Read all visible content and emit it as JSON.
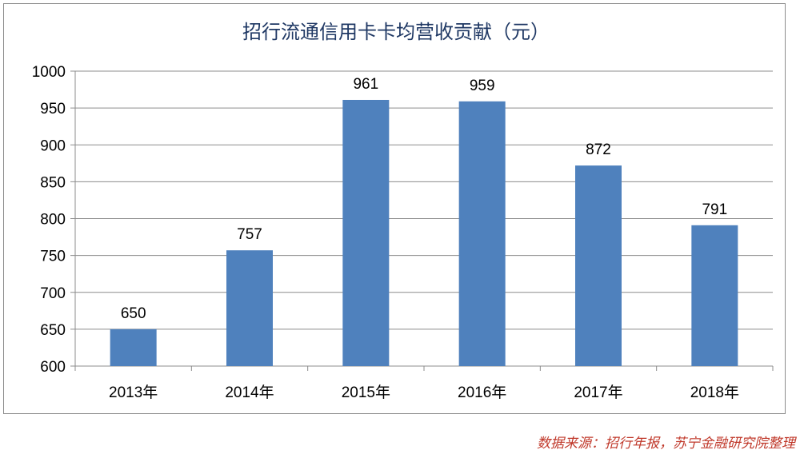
{
  "chart_data": {
    "type": "bar",
    "title": "招行流通信用卡卡均营收贡献（元）",
    "categories": [
      "2013年",
      "2014年",
      "2015年",
      "2016年",
      "2017年",
      "2018年"
    ],
    "values": [
      650,
      757,
      961,
      959,
      872,
      791
    ],
    "data_labels": [
      "650",
      "757",
      "961",
      "959",
      "872",
      "791"
    ],
    "ylim": [
      600,
      1000
    ],
    "yticks": [
      "600",
      "650",
      "700",
      "750",
      "800",
      "850",
      "900",
      "950",
      "1000"
    ],
    "xlabel": "",
    "ylabel": "",
    "grid": true,
    "legend": "none",
    "bar_color": "#4f81bd",
    "grid_color": "#8c8c8c"
  },
  "source_note": "数据来源：招行年报，苏宁金融研究院整理"
}
